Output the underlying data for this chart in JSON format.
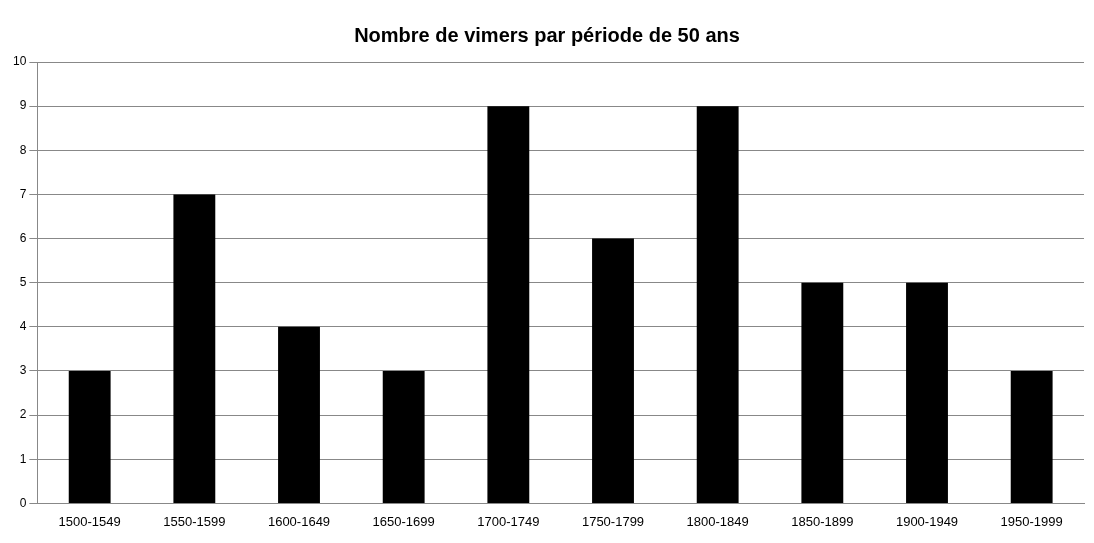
{
  "chart_data": {
    "type": "bar",
    "title": "Nombre de vimers par période de 50 ans",
    "categories": [
      "1500-1549",
      "1550-1599",
      "1600-1649",
      "1650-1699",
      "1700-1749",
      "1750-1799",
      "1800-1849",
      "1850-1899",
      "1900-1949",
      "1950-1999"
    ],
    "values": [
      3,
      7,
      4,
      3,
      9,
      6,
      9,
      5,
      5,
      3
    ],
    "color": "#000000",
    "ylim": [
      0,
      10
    ],
    "yticks": [
      0,
      1,
      2,
      3,
      4,
      5,
      6,
      7,
      8,
      9,
      10
    ],
    "grid": "y"
  }
}
